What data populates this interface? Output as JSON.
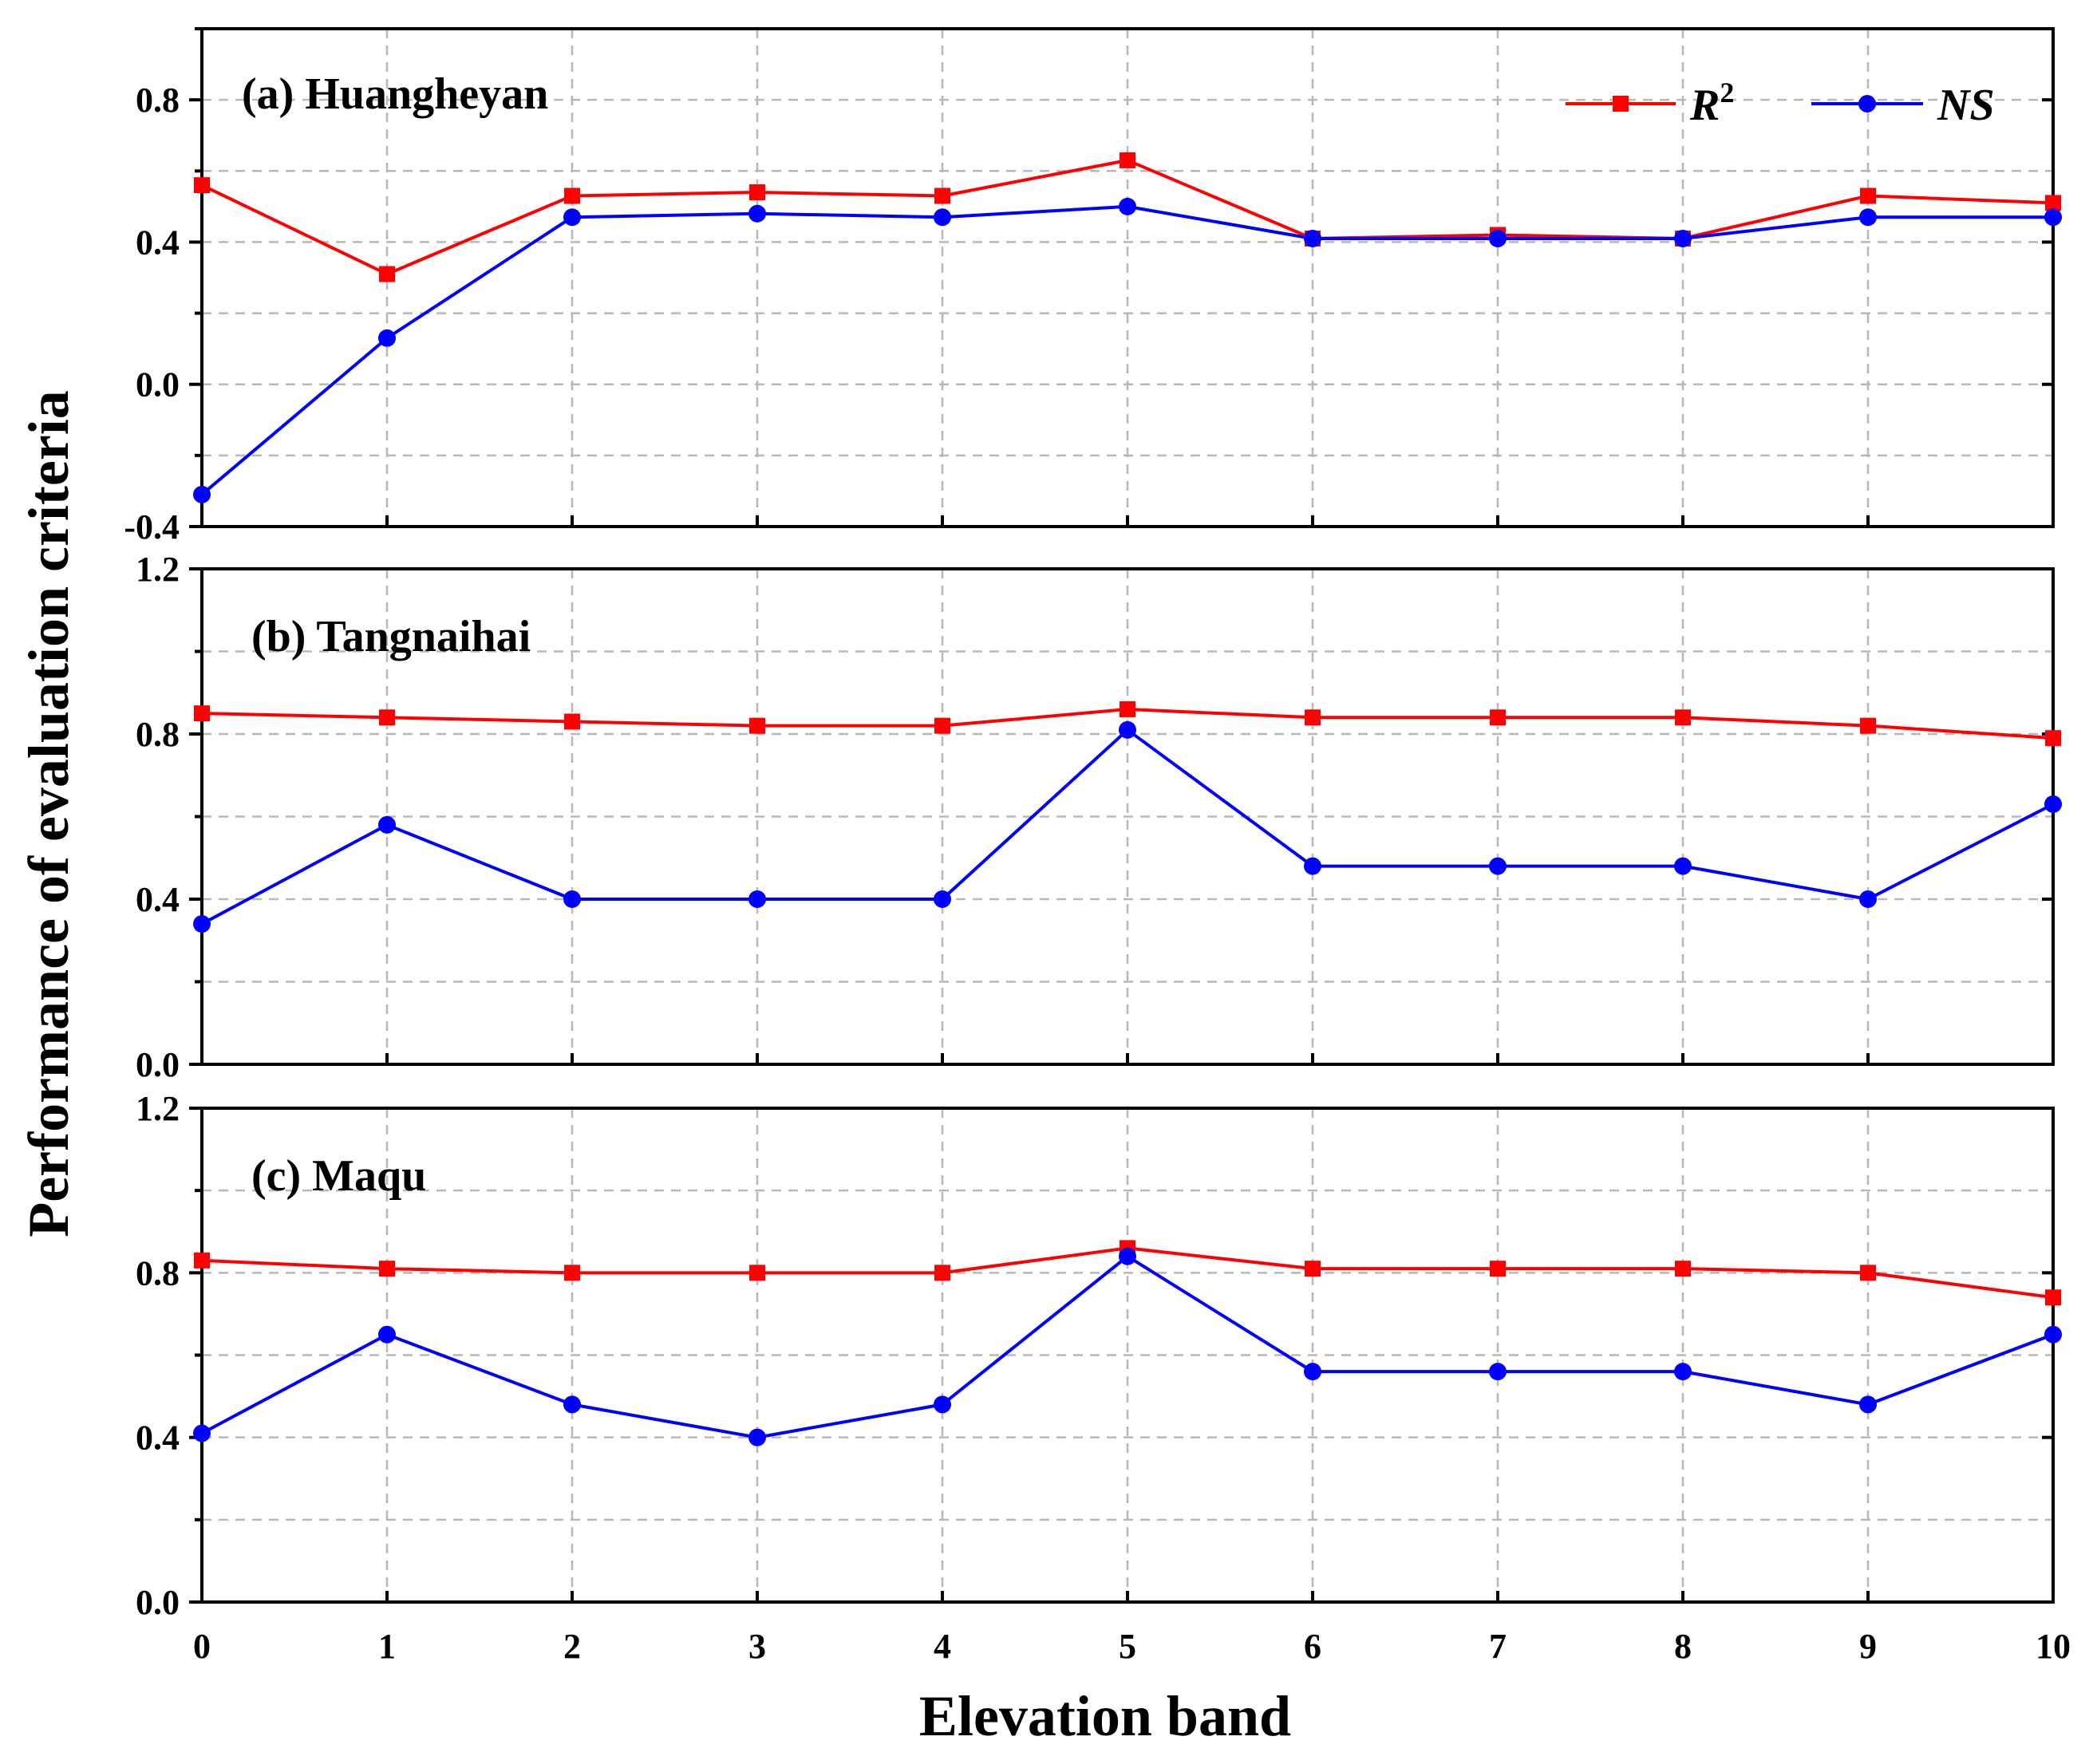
{
  "chart_data": {
    "type": "line",
    "ylabel": "Performance of evaluation criteria",
    "xlabel": "Elevation band",
    "x": [
      0,
      1,
      2,
      3,
      4,
      5,
      6,
      7,
      8,
      9,
      10
    ],
    "xlim": [
      0,
      10
    ],
    "x_ticks": [
      "0",
      "1",
      "2",
      "3",
      "4",
      "5",
      "6",
      "7",
      "8",
      "9",
      "10"
    ],
    "grid": true,
    "legend": {
      "placement": "top-right of panel (a)",
      "entries": [
        {
          "name": "R",
          "superscript": "2",
          "color": "#ff0000",
          "marker": "square"
        },
        {
          "name": "NS",
          "superscript": "",
          "color": "#0000ff",
          "marker": "circle"
        }
      ]
    },
    "panels": [
      {
        "label": "(a) Huangheyan",
        "ylim": [
          -0.4,
          1.0
        ],
        "y_ticks": [
          -0.4,
          0.0,
          0.4,
          0.8
        ],
        "y_tick_labels": [
          "-0.4",
          "0.0",
          "0.4",
          "0.8"
        ],
        "y_minor_ticks": [
          -0.2,
          0.2,
          0.6,
          1.0
        ],
        "series": [
          {
            "name": "R2",
            "color": "#ff0000",
            "marker": "square",
            "values": [
              0.56,
              0.31,
              0.53,
              0.54,
              0.53,
              0.63,
              0.41,
              0.42,
              0.41,
              0.53,
              0.51
            ]
          },
          {
            "name": "NS",
            "color": "#0000ff",
            "marker": "circle",
            "values": [
              -0.31,
              0.13,
              0.47,
              0.48,
              0.47,
              0.5,
              0.41,
              0.41,
              0.41,
              0.47,
              0.47
            ]
          }
        ]
      },
      {
        "label": "(b) Tangnaihai",
        "ylim": [
          0.0,
          1.2
        ],
        "y_ticks": [
          0.0,
          0.4,
          0.8,
          1.2
        ],
        "y_tick_labels": [
          "0.0",
          "0.4",
          "0.8",
          "1.2"
        ],
        "y_minor_ticks": [
          0.2,
          0.6,
          1.0
        ],
        "series": [
          {
            "name": "R2",
            "color": "#ff0000",
            "marker": "square",
            "values": [
              0.85,
              0.84,
              0.83,
              0.82,
              0.82,
              0.86,
              0.84,
              0.84,
              0.84,
              0.82,
              0.79
            ]
          },
          {
            "name": "NS",
            "color": "#0000ff",
            "marker": "circle",
            "values": [
              0.34,
              0.58,
              0.4,
              0.4,
              0.4,
              0.81,
              0.48,
              0.48,
              0.48,
              0.4,
              0.63
            ]
          }
        ]
      },
      {
        "label": "(c) Maqu",
        "ylim": [
          0.0,
          1.2
        ],
        "y_ticks": [
          0.0,
          0.4,
          0.8,
          1.2
        ],
        "y_tick_labels": [
          "0.0",
          "0.4",
          "0.8",
          "1.2"
        ],
        "y_minor_ticks": [
          0.2,
          0.6,
          1.0
        ],
        "series": [
          {
            "name": "R2",
            "color": "#ff0000",
            "marker": "square",
            "values": [
              0.83,
              0.81,
              0.8,
              0.8,
              0.8,
              0.86,
              0.81,
              0.81,
              0.81,
              0.8,
              0.74
            ]
          },
          {
            "name": "NS",
            "color": "#0000ff",
            "marker": "circle",
            "values": [
              0.41,
              0.65,
              0.48,
              0.4,
              0.48,
              0.84,
              0.56,
              0.56,
              0.56,
              0.48,
              0.65
            ]
          }
        ]
      }
    ]
  }
}
